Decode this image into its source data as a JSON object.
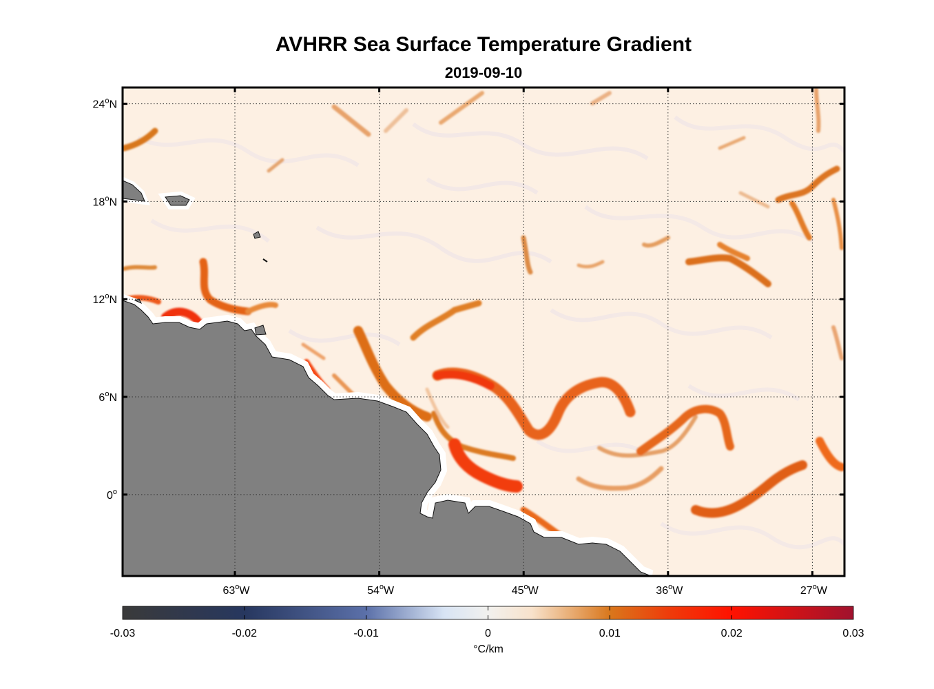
{
  "title": "AVHRR Sea Surface Temperature Gradient",
  "subtitle": "2019-09-10",
  "map": {
    "lon_range": [
      -70,
      -25
    ],
    "lat_range": [
      -5,
      25
    ],
    "lat_ticks": [
      {
        "value": 24,
        "num": "24",
        "hemi": "N"
      },
      {
        "value": 18,
        "num": "18",
        "hemi": "N"
      },
      {
        "value": 12,
        "num": "12",
        "hemi": "N"
      },
      {
        "value": 6,
        "num": "6",
        "hemi": "N"
      },
      {
        "value": 0,
        "num": "0",
        "hemi": ""
      }
    ],
    "lon_ticks": [
      {
        "value": -63,
        "num": "63",
        "hemi": "W"
      },
      {
        "value": -54,
        "num": "54",
        "hemi": "W"
      },
      {
        "value": -45,
        "num": "45",
        "hemi": "W"
      },
      {
        "value": -36,
        "num": "36",
        "hemi": "W"
      },
      {
        "value": -27,
        "num": "27",
        "hemi": "W"
      }
    ],
    "grid": "dotted",
    "land_color": "#808080",
    "ocean_background": "#fdf0e4"
  },
  "colorbar": {
    "range": [
      -0.03,
      0.03
    ],
    "ticks": [
      "-0.03",
      "-0.02",
      "-0.01",
      "0",
      "0.01",
      "0.02",
      "0.03"
    ],
    "unit_label": "°C/km",
    "colors": [
      "#333333",
      "#26365f",
      "#5a6fa8",
      "#dfe8f4",
      "#fbecdb",
      "#d97a1c",
      "#ff1a00",
      "#a50f2f"
    ]
  }
}
